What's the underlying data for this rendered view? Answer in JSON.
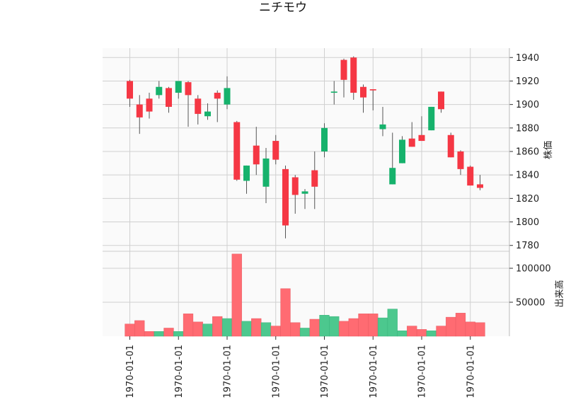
{
  "chart_data": {
    "type": "candlestick",
    "title": "ニチモウ",
    "colors": {
      "up": "#2cc481",
      "down": "#ff3b46",
      "up_dark": "#16b26c",
      "down_dark": "#f53744",
      "volume_up": "#4cc88e",
      "volume_down": "#ff6b72",
      "wick": "#555555"
    },
    "grid": true,
    "price_panel": {
      "ylabel": "株価",
      "ylim": [
        1775,
        1948
      ],
      "yticks": [
        1780,
        1800,
        1820,
        1840,
        1860,
        1880,
        1900,
        1920,
        1940
      ],
      "ytick_labels": [
        "1780",
        "1800",
        "1820",
        "1840",
        "1860",
        "1880",
        "1900",
        "1920",
        "1940"
      ]
    },
    "volume_panel": {
      "ylabel": "出来高",
      "ylim": [
        0,
        125000
      ],
      "yticks": [
        50000,
        100000
      ],
      "ytick_labels": [
        "50000",
        "100000"
      ]
    },
    "xtick_labels": [
      "1970-01-01",
      "1970-01-01",
      "1970-01-01",
      "1970-01-01",
      "1970-01-01",
      "1970-01-01",
      "1970-01-01",
      "1970-01-01"
    ],
    "xtick_indices": [
      0,
      5,
      10,
      15,
      20,
      25,
      30,
      35
    ],
    "candles": [
      {
        "open": 1920,
        "high": 1921,
        "low": 1898,
        "close": 1905,
        "volume": 18000
      },
      {
        "open": 1900,
        "high": 1908,
        "low": 1875,
        "close": 1889,
        "volume": 23000
      },
      {
        "open": 1905,
        "high": 1910,
        "low": 1888,
        "close": 1894,
        "volume": 7000
      },
      {
        "open": 1908,
        "high": 1920,
        "low": 1905,
        "close": 1915,
        "volume": 7000
      },
      {
        "open": 1914,
        "high": 1915,
        "low": 1893,
        "close": 1898,
        "volume": 12000
      },
      {
        "open": 1910,
        "high": 1920,
        "low": 1905,
        "close": 1920,
        "volume": 7000
      },
      {
        "open": 1919,
        "high": 1920,
        "low": 1881,
        "close": 1908,
        "volume": 33000
      },
      {
        "open": 1905,
        "high": 1908,
        "low": 1883,
        "close": 1892,
        "volume": 21000
      },
      {
        "open": 1890,
        "high": 1901,
        "low": 1887,
        "close": 1894,
        "volume": 18000
      },
      {
        "open": 1910,
        "high": 1912,
        "low": 1885,
        "close": 1905,
        "volume": 29000
      },
      {
        "open": 1900,
        "high": 1924,
        "low": 1896,
        "close": 1914,
        "volume": 26000
      },
      {
        "open": 1885,
        "high": 1886,
        "low": 1835,
        "close": 1836,
        "volume": 121000
      },
      {
        "open": 1835,
        "high": 1848,
        "low": 1824,
        "close": 1848,
        "volume": 22000
      },
      {
        "open": 1865,
        "high": 1881,
        "low": 1840,
        "close": 1849,
        "volume": 26000
      },
      {
        "open": 1830,
        "high": 1863,
        "low": 1816,
        "close": 1854,
        "volume": 20000
      },
      {
        "open": 1869,
        "high": 1874,
        "low": 1849,
        "close": 1853,
        "volume": 15000
      },
      {
        "open": 1845,
        "high": 1848,
        "low": 1786,
        "close": 1797,
        "volume": 70000
      },
      {
        "open": 1838,
        "high": 1840,
        "low": 1807,
        "close": 1823,
        "volume": 20000
      },
      {
        "open": 1824,
        "high": 1828,
        "low": 1811,
        "close": 1826,
        "volume": 12000
      },
      {
        "open": 1844,
        "high": 1860,
        "low": 1811,
        "close": 1830,
        "volume": 25000
      },
      {
        "open": 1860,
        "high": 1884,
        "low": 1855,
        "close": 1880,
        "volume": 31000
      },
      {
        "open": 1910,
        "high": 1920,
        "low": 1900,
        "close": 1911,
        "volume": 29000
      },
      {
        "open": 1938,
        "high": 1939,
        "low": 1906,
        "close": 1921,
        "volume": 22000
      },
      {
        "open": 1940,
        "high": 1941,
        "low": 1904,
        "close": 1910,
        "volume": 26000
      },
      {
        "open": 1915,
        "high": 1917,
        "low": 1893,
        "close": 1906,
        "volume": 33000
      },
      {
        "open": 1913,
        "high": 1913,
        "low": 1895,
        "close": 1912,
        "volume": 33000
      },
      {
        "open": 1879,
        "high": 1898,
        "low": 1873,
        "close": 1883,
        "volume": 27000
      },
      {
        "open": 1832,
        "high": 1876,
        "low": 1832,
        "close": 1846,
        "volume": 40000
      },
      {
        "open": 1850,
        "high": 1873,
        "low": 1850,
        "close": 1870,
        "volume": 8000
      },
      {
        "open": 1871,
        "high": 1885,
        "low": 1864,
        "close": 1864,
        "volume": 15000
      },
      {
        "open": 1874,
        "high": 1890,
        "low": 1869,
        "close": 1869,
        "volume": 10000
      },
      {
        "open": 1878,
        "high": 1898,
        "low": 1878,
        "close": 1898,
        "volume": 8000
      },
      {
        "open": 1911,
        "high": 1911,
        "low": 1893,
        "close": 1896,
        "volume": 15000
      },
      {
        "open": 1874,
        "high": 1876,
        "low": 1855,
        "close": 1855,
        "volume": 28000
      },
      {
        "open": 1860,
        "high": 1861,
        "low": 1840,
        "close": 1845,
        "volume": 34000
      },
      {
        "open": 1847,
        "high": 1848,
        "low": 1831,
        "close": 1831,
        "volume": 21000
      },
      {
        "open": 1832,
        "high": 1840,
        "low": 1827,
        "close": 1829,
        "volume": 20000
      }
    ]
  }
}
